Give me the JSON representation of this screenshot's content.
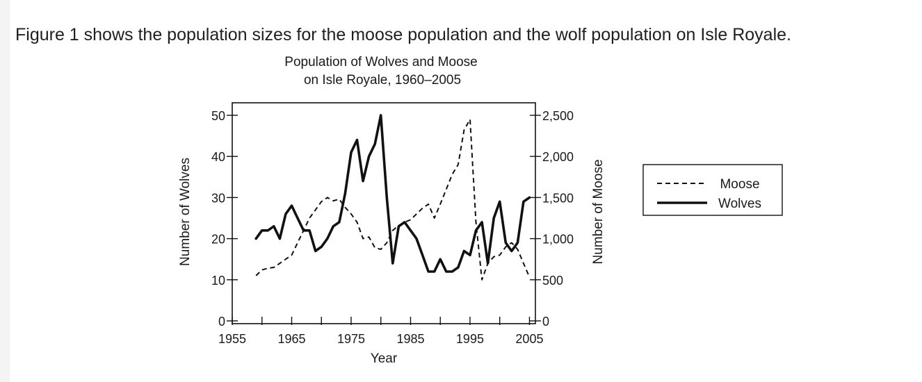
{
  "intro_text": "Figure 1 shows the population sizes for the moose population and the wolf population on Isle Royale.",
  "colors": {
    "ink": "#111111",
    "text": "#1f1f1f",
    "background": "#ffffff"
  },
  "chart_data": {
    "type": "line",
    "title_lines": [
      "Population of Wolves and Moose",
      "on Isle Royale, 1960–2005"
    ],
    "xlabel": "Year",
    "ylabel_left": "Number of Wolves",
    "ylabel_right": "Number of Moose",
    "xlim": [
      1955,
      2006
    ],
    "ylim_left": [
      0,
      55
    ],
    "ylim_right": [
      0,
      2750
    ],
    "x_ticks": [
      1955,
      1965,
      1975,
      1985,
      1995,
      2005
    ],
    "x_minor_ticks": [
      1960,
      1970,
      1980,
      1990,
      2000
    ],
    "y_left_ticks": [
      0,
      10,
      20,
      30,
      40,
      50
    ],
    "y_right_ticks": [
      0,
      500,
      1000,
      1500,
      2000,
      2500
    ],
    "y_right_tick_labels": [
      "0",
      "500",
      "1,000",
      "1,500",
      "2,000",
      "2,500"
    ],
    "legend": {
      "position": "right",
      "entries": [
        {
          "label": "Moose",
          "style": "dashed"
        },
        {
          "label": "Wolves",
          "style": "solid"
        }
      ]
    },
    "series": [
      {
        "name": "Wolves",
        "axis": "left",
        "style": "solid",
        "x": [
          1959,
          1960,
          1961,
          1962,
          1963,
          1964,
          1965,
          1966,
          1967,
          1968,
          1969,
          1970,
          1971,
          1972,
          1973,
          1974,
          1975,
          1976,
          1977,
          1978,
          1979,
          1980,
          1981,
          1982,
          1983,
          1984,
          1985,
          1986,
          1987,
          1988,
          1989,
          1990,
          1991,
          1992,
          1993,
          1994,
          1995,
          1996,
          1997,
          1998,
          1999,
          2000,
          2001,
          2002,
          2003,
          2004,
          2005
        ],
        "values": [
          20,
          22,
          22,
          23,
          20,
          26,
          28,
          25,
          22,
          22,
          17,
          18,
          20,
          23,
          24,
          31,
          41,
          44,
          34,
          40,
          43,
          50,
          30,
          14,
          23,
          24,
          22,
          20,
          16,
          12,
          12,
          15,
          12,
          12,
          13,
          17,
          16,
          22,
          24,
          14,
          25,
          29,
          19,
          17,
          19,
          29,
          30
        ]
      },
      {
        "name": "Moose",
        "axis": "right",
        "style": "dashed",
        "x": [
          1959,
          1960,
          1961,
          1962,
          1963,
          1964,
          1965,
          1966,
          1967,
          1968,
          1969,
          1970,
          1971,
          1972,
          1973,
          1974,
          1975,
          1976,
          1977,
          1978,
          1979,
          1980,
          1981,
          1982,
          1983,
          1984,
          1985,
          1986,
          1987,
          1988,
          1989,
          1990,
          1991,
          1992,
          1993,
          1994,
          1995,
          1996,
          1997,
          1998,
          1999,
          2000,
          2001,
          2002,
          2003,
          2004,
          2005
        ],
        "values": [
          550,
          620,
          640,
          650,
          700,
          750,
          800,
          950,
          1100,
          1250,
          1350,
          1450,
          1500,
          1460,
          1480,
          1380,
          1300,
          1200,
          1000,
          1020,
          890,
          870,
          950,
          1100,
          1160,
          1200,
          1230,
          1300,
          1370,
          1420,
          1250,
          1420,
          1600,
          1780,
          1900,
          2320,
          2450,
          1200,
          500,
          700,
          780,
          800,
          900,
          950,
          870,
          700,
          530
        ]
      }
    ]
  }
}
